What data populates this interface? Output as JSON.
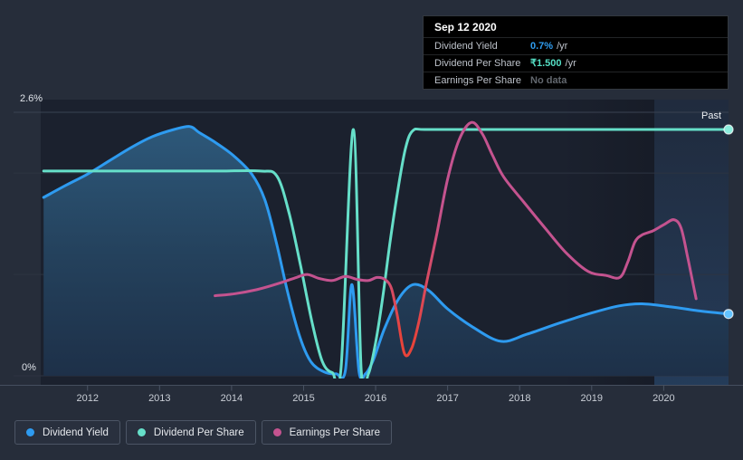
{
  "page": {
    "background": "#262d3a"
  },
  "tooltip": {
    "title": "Sep 12 2020",
    "rows": [
      {
        "label": "Dividend Yield",
        "value": "0.7%",
        "suffix": "/yr",
        "color": "#2f9df0"
      },
      {
        "label": "Dividend Per Share",
        "value": "₹1.500",
        "suffix": "/yr",
        "color": "#55dfc5"
      },
      {
        "label": "Earnings Per Share",
        "value": "No data",
        "suffix": "",
        "color": "#62676e"
      }
    ]
  },
  "legend": [
    {
      "label": "Dividend Yield",
      "color": "#2e9bf0"
    },
    {
      "label": "Dividend Per Share",
      "color": "#66dfc9"
    },
    {
      "label": "Earnings Per Share",
      "color": "#c4538f"
    }
  ],
  "chart_data": {
    "type": "line",
    "title": "",
    "ylabel_top": "2.6%",
    "ylabel_bottom": "0%",
    "past_label": "Past",
    "ylim": [
      0,
      2.6
    ],
    "xlim_years": [
      2011.35,
      2020.9
    ],
    "grid_values": [
      2.6,
      2,
      1,
      0
    ],
    "x_ticks": [
      2012,
      2013,
      2014,
      2015,
      2016,
      2017,
      2018,
      2019,
      2020
    ],
    "past_start": 2019.87,
    "legend_position": "bottom",
    "series": [
      {
        "name": "Dividend Yield",
        "unit": "%",
        "color": "#2e9bf0",
        "area": true,
        "end_dot": true,
        "points": [
          [
            2011.39,
            1.76
          ],
          [
            2011.7,
            1.88
          ],
          [
            2012.0,
            1.99
          ],
          [
            2012.3,
            2.12
          ],
          [
            2012.6,
            2.25
          ],
          [
            2012.9,
            2.36
          ],
          [
            2013.2,
            2.43
          ],
          [
            2013.42,
            2.46
          ],
          [
            2013.55,
            2.4
          ],
          [
            2013.78,
            2.3
          ],
          [
            2014.03,
            2.17
          ],
          [
            2014.28,
            1.99
          ],
          [
            2014.46,
            1.74
          ],
          [
            2014.62,
            1.32
          ],
          [
            2014.78,
            0.82
          ],
          [
            2014.95,
            0.38
          ],
          [
            2015.1,
            0.14
          ],
          [
            2015.28,
            0.04
          ],
          [
            2015.45,
            0.02
          ],
          [
            2015.58,
            0.05
          ],
          [
            2015.67,
            0.9
          ],
          [
            2015.77,
            0.04
          ],
          [
            2015.86,
            0.02
          ],
          [
            2015.97,
            0.16
          ],
          [
            2016.12,
            0.46
          ],
          [
            2016.32,
            0.76
          ],
          [
            2016.52,
            0.9
          ],
          [
            2016.74,
            0.84
          ],
          [
            2017.0,
            0.66
          ],
          [
            2017.35,
            0.48
          ],
          [
            2017.74,
            0.34
          ],
          [
            2018.1,
            0.41
          ],
          [
            2018.55,
            0.52
          ],
          [
            2019.0,
            0.62
          ],
          [
            2019.38,
            0.69
          ],
          [
            2019.7,
            0.71
          ],
          [
            2020.1,
            0.68
          ],
          [
            2020.5,
            0.64
          ],
          [
            2020.9,
            0.61
          ]
        ]
      },
      {
        "name": "Dividend Per Share",
        "unit": "relative",
        "current_value": "₹1.500 /yr",
        "color": "#66dfc9",
        "area": false,
        "end_dot": true,
        "points": [
          [
            2011.39,
            2.02
          ],
          [
            2012.2,
            2.02
          ],
          [
            2013.0,
            2.02
          ],
          [
            2013.8,
            2.02
          ],
          [
            2014.4,
            2.02
          ],
          [
            2014.63,
            1.97
          ],
          [
            2014.8,
            1.6
          ],
          [
            2014.96,
            1.08
          ],
          [
            2015.12,
            0.52
          ],
          [
            2015.26,
            0.14
          ],
          [
            2015.4,
            0.03
          ],
          [
            2015.52,
            0.08
          ],
          [
            2015.69,
            2.43
          ],
          [
            2015.8,
            0.06
          ],
          [
            2015.9,
            0.02
          ],
          [
            2016.0,
            0.33
          ],
          [
            2016.1,
            0.78
          ],
          [
            2016.2,
            1.32
          ],
          [
            2016.32,
            1.88
          ],
          [
            2016.42,
            2.26
          ],
          [
            2016.52,
            2.42
          ],
          [
            2016.7,
            2.43
          ],
          [
            2017.5,
            2.43
          ],
          [
            2018.5,
            2.43
          ],
          [
            2019.5,
            2.43
          ],
          [
            2020.9,
            2.43
          ]
        ]
      },
      {
        "name": "Earnings Per Share",
        "unit": "relative",
        "color": "#c4538f",
        "negative_color": "#e8433a",
        "negative_span": [
          2016.19,
          2016.7
        ],
        "area": false,
        "end_dot": false,
        "points": [
          [
            2013.77,
            0.79
          ],
          [
            2014.05,
            0.81
          ],
          [
            2014.35,
            0.85
          ],
          [
            2014.65,
            0.91
          ],
          [
            2014.9,
            0.97
          ],
          [
            2015.05,
            1.0
          ],
          [
            2015.22,
            0.96
          ],
          [
            2015.4,
            0.94
          ],
          [
            2015.58,
            0.98
          ],
          [
            2015.75,
            0.95
          ],
          [
            2015.9,
            0.94
          ],
          [
            2016.02,
            0.97
          ],
          [
            2016.13,
            0.95
          ],
          [
            2016.22,
            0.86
          ],
          [
            2016.3,
            0.6
          ],
          [
            2016.4,
            0.22
          ],
          [
            2016.5,
            0.27
          ],
          [
            2016.6,
            0.53
          ],
          [
            2016.71,
            0.93
          ],
          [
            2016.85,
            1.4
          ],
          [
            2017.0,
            1.94
          ],
          [
            2017.16,
            2.33
          ],
          [
            2017.33,
            2.5
          ],
          [
            2017.48,
            2.39
          ],
          [
            2017.62,
            2.18
          ],
          [
            2017.78,
            1.96
          ],
          [
            2018.05,
            1.72
          ],
          [
            2018.35,
            1.46
          ],
          [
            2018.65,
            1.21
          ],
          [
            2018.95,
            1.03
          ],
          [
            2019.2,
            0.99
          ],
          [
            2019.39,
            0.97
          ],
          [
            2019.5,
            1.12
          ],
          [
            2019.6,
            1.32
          ],
          [
            2019.7,
            1.39
          ],
          [
            2019.85,
            1.43
          ],
          [
            2020.0,
            1.49
          ],
          [
            2020.14,
            1.54
          ],
          [
            2020.24,
            1.46
          ],
          [
            2020.33,
            1.18
          ],
          [
            2020.41,
            0.9
          ],
          [
            2020.45,
            0.76
          ]
        ]
      }
    ]
  }
}
